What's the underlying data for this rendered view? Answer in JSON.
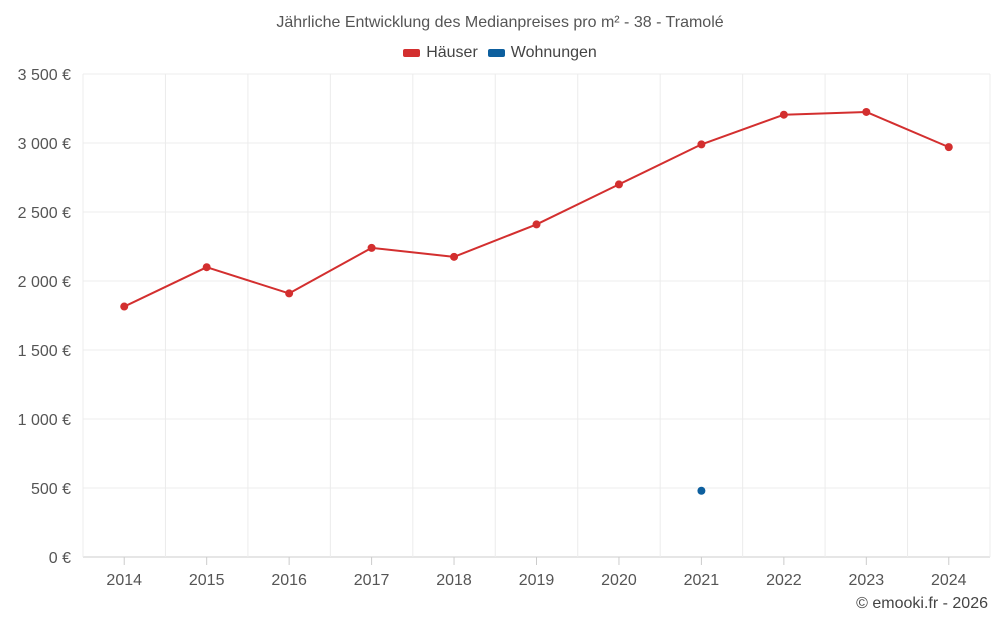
{
  "chart_data": {
    "type": "line",
    "title": "Jährliche Entwicklung des Medianpreises pro m² - 38 - Tramolé",
    "xlabel": "",
    "ylabel": "",
    "categories": [
      "2014",
      "2015",
      "2016",
      "2017",
      "2018",
      "2019",
      "2020",
      "2021",
      "2022",
      "2023",
      "2024"
    ],
    "ylim": [
      0,
      3500
    ],
    "yticks": [
      0,
      500,
      1000,
      1500,
      2000,
      2500,
      3000,
      3500
    ],
    "ytick_labels": [
      "0 €",
      "500 €",
      "1 000 €",
      "1 500 €",
      "2 000 €",
      "2 500 €",
      "3 000 €",
      "3 500 €"
    ],
    "grid": true,
    "legend_position": "top-center",
    "series": [
      {
        "name": "Häuser",
        "color": "#d32f2f",
        "values": [
          1815,
          2100,
          1910,
          2240,
          2175,
          2410,
          2700,
          2990,
          3205,
          3225,
          2970
        ]
      },
      {
        "name": "Wohnungen",
        "color": "#0d5f9e",
        "values": [
          null,
          null,
          null,
          null,
          null,
          null,
          null,
          480,
          null,
          null,
          null
        ]
      }
    ]
  },
  "legend": {
    "items": [
      {
        "label": "Häuser",
        "color": "#d32f2f"
      },
      {
        "label": "Wohnungen",
        "color": "#0d5f9e"
      }
    ]
  },
  "watermark": "© emooki.fr - 2026"
}
